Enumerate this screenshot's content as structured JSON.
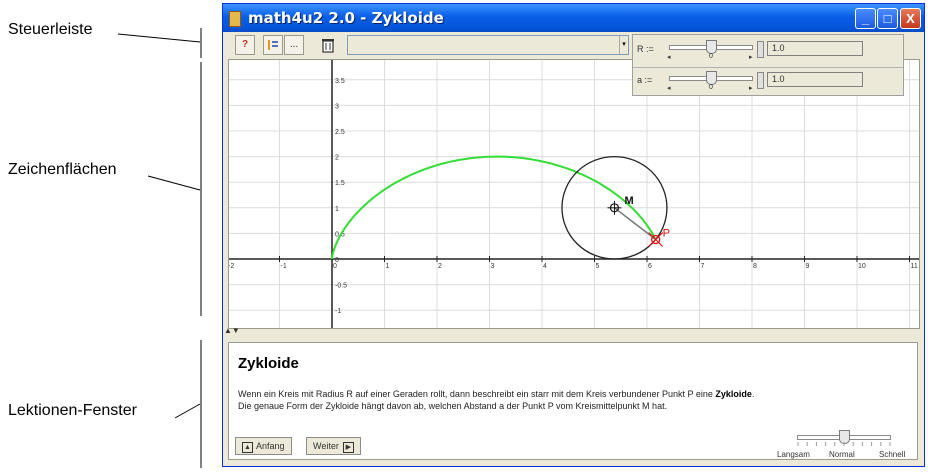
{
  "annotations": {
    "steuerleiste": "Steuerleiste",
    "zeichenflaechen": "Zeichenflächen",
    "lektionen": "Lektionen-Fenster"
  },
  "window": {
    "title": "math4u2 2.0 - Zykloide",
    "minimize": "_",
    "maximize": "□",
    "close": "X"
  },
  "toolbar": {
    "help_icon": "?",
    "more_label": "...",
    "combo_value": ""
  },
  "parameters": [
    {
      "label": "R :=",
      "value": "1.0",
      "slider_fraction": 0.5,
      "tick_min": "◂",
      "tick_mid": "0",
      "tick_max": "▸"
    },
    {
      "label": "a :=",
      "value": "1.0",
      "slider_fraction": 0.5,
      "tick_min": "◂",
      "tick_mid": "0",
      "tick_max": "▸"
    }
  ],
  "graph": {
    "x_ticks": [
      "-2",
      "-1",
      "0",
      "1",
      "2",
      "3",
      "4",
      "5",
      "6",
      "7",
      "8",
      "9",
      "10",
      "11"
    ],
    "y_ticks": [
      "3.5",
      "3",
      "2.5",
      "2",
      "1.5",
      "1",
      "0.5",
      "0",
      "-0.5",
      "-1"
    ],
    "point_m_label": "M",
    "point_p_label": "P",
    "curve_color": "#33dd33",
    "point_p_color": "#dd1111"
  },
  "lesson": {
    "title": "Zykloide",
    "text_line1_pre": "Wenn ein Kreis mit Radius R auf einer Geraden rollt, dann beschreibt ein starr mit dem Kreis verbundener Punkt P eine ",
    "text_line1_bold": "Zykloide",
    "text_line1_post": ".",
    "text_line2": "Die genaue Form der Zykloide hängt davon ab, welchen Abstand a der Punkt P vom Kreismittelpunkt M hat.",
    "btn_start": "Anfang",
    "btn_next": "Weiter",
    "speed_slow": "Langsam",
    "speed_normal": "Normal",
    "speed_fast": "Schnell",
    "speed_fraction": 0.5
  }
}
